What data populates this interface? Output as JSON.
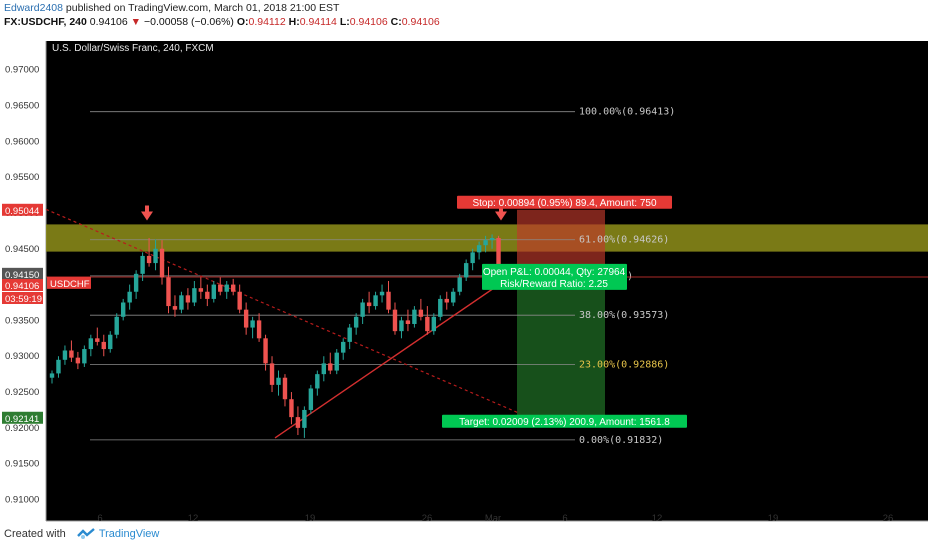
{
  "header": {
    "user": "Edward2408",
    "published_text": "published on TradingView.com, March 01, 2018 21:00 EST",
    "symbol": "FX:USDCHF, 240",
    "last": "0.94106",
    "change": "−0.00058 (−0.06%)",
    "o_label": "O:",
    "o": "0.94112",
    "h_label": "H:",
    "h": "0.94114",
    "l_label": "L:",
    "l": "0.94106",
    "c_label": "C:",
    "c": "0.94106"
  },
  "footer": {
    "created_with": "Created with",
    "brand": "TradingView",
    "logo_icon": "tradingview-logo-icon"
  },
  "colors": {
    "background": "#000000",
    "up": "#26a69a",
    "down": "#ef5350",
    "fib_zone": "#8f8f1a",
    "stop_zone": "#c0392b",
    "target_zone": "#1b5e20"
  },
  "chart_data": {
    "type": "candlestick",
    "title": "U.S. Dollar/Swiss Franc, 240, FXCM",
    "xlabel": "",
    "ylabel": "",
    "ylim": [
      0.907,
      0.974
    ],
    "y_ticks": [
      "0.97000",
      "0.96500",
      "0.96000",
      "0.95500",
      "0.95000",
      "0.94500",
      "0.94000",
      "0.93500",
      "0.93000",
      "0.92500",
      "0.92000",
      "0.91500",
      "0.91000"
    ],
    "x_ticks": [
      "6",
      "12",
      "19",
      "26",
      "Mar",
      "6",
      "12",
      "19",
      "26"
    ],
    "price_badges": [
      {
        "text": "0.95044",
        "color": "#e53935"
      },
      {
        "text": "0.94150",
        "color": "#555555"
      },
      {
        "text": "USDCHF",
        "color": "#e53935"
      },
      {
        "text": "0.94106",
        "color": "#e53935"
      },
      {
        "text": "03:59:19",
        "color": "#e53935"
      },
      {
        "text": "0.92141",
        "color": "#2e7d32"
      }
    ],
    "fib_levels": [
      {
        "label": "100.00%(0.96413)",
        "price": 0.96413,
        "color": "#c8c8c8"
      },
      {
        "label": "61.00%(0.94626)",
        "price": 0.94626,
        "color": "#c8c8c8"
      },
      {
        "label": "(0.94122)",
        "price": 0.94122,
        "color": "#c8c8c8"
      },
      {
        "label": "38.00%(0.93573)",
        "price": 0.93573,
        "color": "#c8c8c8"
      },
      {
        "label": "23.00%(0.92886)",
        "price": 0.92886,
        "color": "#e6c34a"
      },
      {
        "label": "0.00%(0.91832)",
        "price": 0.91832,
        "color": "#c8c8c8"
      }
    ],
    "position": {
      "stop_label": "Stop: 0.00894 (0.95%) 89.4, Amount: 750",
      "pnl_label": "Open P&L: 0.00044, Qty: 27964",
      "rr_label": "Risk/Reward Ratio: 2.25",
      "target_label": "Target: 0.02009 (2.13%) 200.9, Amount: 1561.8",
      "entry": 0.9415,
      "stop": 0.95044,
      "target": 0.92141
    },
    "fib_zone": [
      0.9446,
      0.9484
    ],
    "trend_up": {
      "from": 0.9186,
      "to": 0.942
    },
    "trend_down": {
      "from": 0.9505,
      "to": 0.922
    },
    "current_price": 0.94106,
    "candles": [
      [
        0.927,
        0.928,
        0.9262,
        0.9276
      ],
      [
        0.9276,
        0.93,
        0.927,
        0.9295
      ],
      [
        0.9295,
        0.9315,
        0.9288,
        0.9308
      ],
      [
        0.9308,
        0.9322,
        0.9292,
        0.9298
      ],
      [
        0.9298,
        0.9306,
        0.9282,
        0.929
      ],
      [
        0.929,
        0.9315,
        0.9285,
        0.931
      ],
      [
        0.931,
        0.933,
        0.93,
        0.9325
      ],
      [
        0.9325,
        0.934,
        0.9315,
        0.932
      ],
      [
        0.932,
        0.933,
        0.93,
        0.931
      ],
      [
        0.931,
        0.9335,
        0.9305,
        0.933
      ],
      [
        0.933,
        0.936,
        0.9325,
        0.9355
      ],
      [
        0.9355,
        0.938,
        0.935,
        0.9375
      ],
      [
        0.9375,
        0.94,
        0.9365,
        0.939
      ],
      [
        0.939,
        0.942,
        0.938,
        0.9415
      ],
      [
        0.9415,
        0.9445,
        0.9405,
        0.944
      ],
      [
        0.944,
        0.9465,
        0.9425,
        0.943
      ],
      [
        0.943,
        0.9463,
        0.942,
        0.945
      ],
      [
        0.945,
        0.9462,
        0.94,
        0.941
      ],
      [
        0.941,
        0.9425,
        0.936,
        0.937
      ],
      [
        0.937,
        0.9385,
        0.9355,
        0.9365
      ],
      [
        0.9365,
        0.939,
        0.936,
        0.9385
      ],
      [
        0.9385,
        0.9395,
        0.9365,
        0.9375
      ],
      [
        0.9375,
        0.9405,
        0.937,
        0.9395
      ],
      [
        0.9395,
        0.941,
        0.938,
        0.939
      ],
      [
        0.939,
        0.94,
        0.937,
        0.938
      ],
      [
        0.938,
        0.9405,
        0.9375,
        0.94
      ],
      [
        0.94,
        0.941,
        0.9385,
        0.939
      ],
      [
        0.939,
        0.9405,
        0.938,
        0.94
      ],
      [
        0.94,
        0.9408,
        0.9385,
        0.939
      ],
      [
        0.939,
        0.94,
        0.936,
        0.9365
      ],
      [
        0.9365,
        0.9375,
        0.933,
        0.934
      ],
      [
        0.934,
        0.9355,
        0.9325,
        0.935
      ],
      [
        0.935,
        0.936,
        0.932,
        0.9325
      ],
      [
        0.9325,
        0.933,
        0.928,
        0.929
      ],
      [
        0.929,
        0.93,
        0.925,
        0.926
      ],
      [
        0.926,
        0.928,
        0.9245,
        0.927
      ],
      [
        0.927,
        0.9275,
        0.923,
        0.924
      ],
      [
        0.924,
        0.925,
        0.9205,
        0.9215
      ],
      [
        0.9215,
        0.923,
        0.919,
        0.92
      ],
      [
        0.92,
        0.923,
        0.9186,
        0.9225
      ],
      [
        0.9225,
        0.926,
        0.922,
        0.9255
      ],
      [
        0.9255,
        0.928,
        0.9245,
        0.9275
      ],
      [
        0.9275,
        0.93,
        0.9265,
        0.929
      ],
      [
        0.929,
        0.9305,
        0.9275,
        0.928
      ],
      [
        0.928,
        0.931,
        0.9275,
        0.9305
      ],
      [
        0.9305,
        0.9325,
        0.9295,
        0.932
      ],
      [
        0.932,
        0.9345,
        0.931,
        0.934
      ],
      [
        0.934,
        0.936,
        0.933,
        0.9355
      ],
      [
        0.9355,
        0.938,
        0.9345,
        0.9375
      ],
      [
        0.9375,
        0.939,
        0.936,
        0.937
      ],
      [
        0.937,
        0.939,
        0.9365,
        0.9385
      ],
      [
        0.9385,
        0.94,
        0.9375,
        0.939
      ],
      [
        0.939,
        0.9405,
        0.936,
        0.9365
      ],
      [
        0.9365,
        0.9375,
        0.933,
        0.9335
      ],
      [
        0.9335,
        0.9355,
        0.9325,
        0.935
      ],
      [
        0.935,
        0.9365,
        0.9335,
        0.9345
      ],
      [
        0.9345,
        0.937,
        0.934,
        0.9365
      ],
      [
        0.9365,
        0.938,
        0.935,
        0.9355
      ],
      [
        0.9355,
        0.937,
        0.933,
        0.9335
      ],
      [
        0.9335,
        0.936,
        0.933,
        0.9355
      ],
      [
        0.9355,
        0.9385,
        0.935,
        0.938
      ],
      [
        0.938,
        0.939,
        0.9365,
        0.9375
      ],
      [
        0.9375,
        0.9395,
        0.937,
        0.939
      ],
      [
        0.939,
        0.9415,
        0.9385,
        0.941
      ],
      [
        0.941,
        0.9435,
        0.9405,
        0.943
      ],
      [
        0.943,
        0.945,
        0.942,
        0.9445
      ],
      [
        0.9445,
        0.946,
        0.9435,
        0.9455
      ],
      [
        0.9455,
        0.9468,
        0.9445,
        0.9462
      ],
      [
        0.9462,
        0.947,
        0.945,
        0.9465
      ],
      [
        0.9465,
        0.9468,
        0.941,
        0.9415
      ],
      [
        0.9415,
        0.9425,
        0.9405,
        0.94106
      ]
    ]
  }
}
